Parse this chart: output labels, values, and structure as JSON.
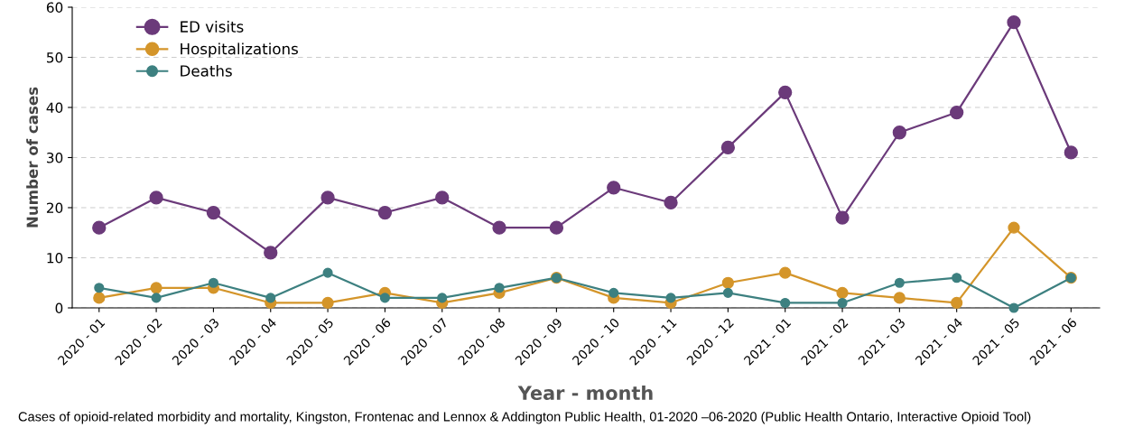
{
  "chart_data": {
    "type": "line",
    "categories": [
      "2020 - 01",
      "2020 - 02",
      "2020 - 03",
      "2020 - 04",
      "2020 - 05",
      "2020 - 06",
      "2020 - 07",
      "2020 - 08",
      "2020 - 09",
      "2020 - 10",
      "2020 - 11",
      "2020 - 12",
      "2021 - 01",
      "2021 - 02",
      "2021 - 03",
      "2021 - 04",
      "2021 - 05",
      "2021 - 06"
    ],
    "series": [
      {
        "name": "ED visits",
        "color": "#6b3a7a",
        "values": [
          16,
          22,
          19,
          11,
          22,
          19,
          22,
          16,
          16,
          24,
          21,
          32,
          43,
          18,
          35,
          39,
          57,
          31
        ]
      },
      {
        "name": "Hospitalizations",
        "color": "#d4952a",
        "values": [
          2,
          4,
          4,
          1,
          1,
          3,
          1,
          3,
          6,
          2,
          1,
          5,
          7,
          3,
          2,
          1,
          16,
          6
        ]
      },
      {
        "name": "Deaths",
        "color": "#3d8080",
        "values": [
          4,
          2,
          5,
          2,
          7,
          2,
          2,
          4,
          6,
          3,
          2,
          3,
          1,
          1,
          5,
          6,
          0,
          6
        ]
      }
    ],
    "xlabel": "Year - month",
    "ylabel": "Number of cases",
    "ylim": [
      0,
      60
    ],
    "yticks": [
      0,
      10,
      20,
      30,
      40,
      50,
      60
    ],
    "grid": "y",
    "legend": "top left",
    "marker": "circle",
    "line_style": "solid",
    "annotations": [
      "Cases of opioid-related morbidity and mortality, Kingston, Frontenac and Lennox & Addington Public Health, 01-2020 –06-2020 (Public Health Ontario, Interactive Opioid Tool)"
    ]
  }
}
